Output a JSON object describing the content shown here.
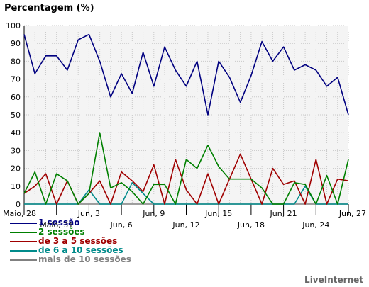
{
  "title": "Percentagem (%)",
  "credit": "LiveInternet",
  "chart_data": {
    "type": "line",
    "ylim": [
      0,
      100
    ],
    "yticks": [
      0,
      10,
      20,
      30,
      40,
      50,
      60,
      70,
      80,
      90,
      100
    ],
    "grid": true,
    "x_tick_labels_row1": [
      "Maio, 28",
      "Jun, 3",
      "Jun, 9",
      "Jun, 15",
      "Jun, 21",
      "Jun, 27"
    ],
    "x_tick_labels_row2": [
      "Maio, 31",
      "Jun, 6",
      "Jun, 12",
      "Jun, 18",
      "Jun, 24"
    ],
    "x": [
      "Maio, 28",
      "Maio, 29",
      "Maio, 30",
      "Maio, 31",
      "Jun, 1",
      "Jun, 2",
      "Jun, 3",
      "Jun, 4",
      "Jun, 5",
      "Jun, 6",
      "Jun, 7",
      "Jun, 8",
      "Jun, 9",
      "Jun, 10",
      "Jun, 11",
      "Jun, 12",
      "Jun, 13",
      "Jun, 14",
      "Jun, 15",
      "Jun, 16",
      "Jun, 17",
      "Jun, 18",
      "Jun, 19",
      "Jun, 20",
      "Jun, 21",
      "Jun, 22",
      "Jun, 23",
      "Jun, 24",
      "Jun, 25",
      "Jun, 26",
      "Jun, 27"
    ],
    "series": [
      {
        "name": "1 sessão",
        "color": "#000080",
        "values": [
          95,
          73,
          83,
          83,
          75,
          92,
          95,
          80,
          60,
          73,
          62,
          85,
          66,
          88,
          75,
          66,
          80,
          50,
          80,
          71,
          57,
          72,
          91,
          80,
          88,
          75,
          78,
          75,
          66,
          71,
          50
        ]
      },
      {
        "name": "2 sessões",
        "color": "#008000",
        "values": [
          6,
          18,
          0,
          17,
          13,
          0,
          6,
          40,
          9,
          12,
          7,
          0,
          11,
          11,
          0,
          25,
          20,
          33,
          21,
          14,
          14,
          14,
          9,
          0,
          0,
          12,
          11,
          0,
          16,
          0,
          25
        ]
      },
      {
        "name": "de 3 a 5 sessões",
        "color": "#a00000",
        "values": [
          6,
          10,
          17,
          0,
          13,
          0,
          6,
          13,
          0,
          18,
          13,
          7,
          22,
          0,
          25,
          8,
          0,
          17,
          0,
          14,
          28,
          14,
          0,
          20,
          11,
          13,
          0,
          25,
          0,
          14,
          13
        ]
      },
      {
        "name": "de 6 a 10 sessões",
        "color": "#008b8b",
        "values": [
          0,
          0,
          0,
          0,
          0,
          0,
          8,
          0,
          0,
          0,
          12,
          6,
          0,
          0,
          0,
          0,
          0,
          0,
          0,
          0,
          0,
          0,
          0,
          0,
          0,
          0,
          10,
          0,
          0,
          0,
          0
        ]
      },
      {
        "name": "mais de 10 sessões",
        "color": "#808080",
        "values": [
          0,
          0,
          0,
          0,
          0,
          0,
          0,
          0,
          0,
          0,
          0,
          0,
          0,
          0,
          0,
          0,
          0,
          0,
          0,
          0,
          0,
          0,
          0,
          0,
          0,
          0,
          0,
          0,
          0,
          0,
          0
        ]
      }
    ]
  }
}
